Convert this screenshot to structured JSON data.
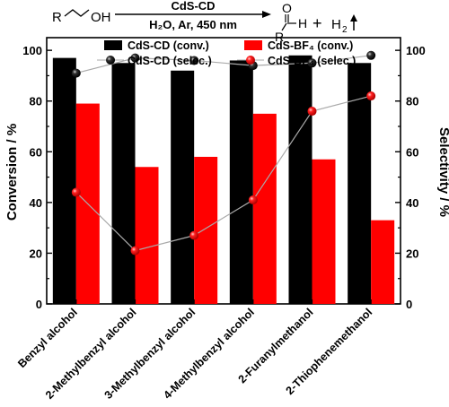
{
  "scheme": {
    "reactant_r": "R",
    "reactant_oh": "OH",
    "arrow_top": "CdS-CD",
    "arrow_bottom": "H₂O, Ar, 450 nm",
    "product_o": "O",
    "product_h": "H",
    "product_r": "R",
    "plus": "+",
    "h2_h": "H",
    "h2_sub": "2"
  },
  "chart_data": {
    "type": "bar",
    "categories": [
      "Benzyl alcohol",
      "2-Methylbenzyl alcohol",
      "3-Methylbenzyl alcohol",
      "4-Methylbenzyl alcohol",
      "2-Furanylmethanol",
      "2-Thiophenemethanol"
    ],
    "series": [
      {
        "name": "CdS-CD (conv.)",
        "kind": "bar",
        "axis": "left",
        "color": "#000000",
        "values": [
          97,
          95,
          92,
          96,
          98,
          95
        ]
      },
      {
        "name": "CdS-BF₄ (conv.)",
        "kind": "bar",
        "axis": "left",
        "color": "#ff0000",
        "values": [
          79,
          54,
          58,
          75,
          57,
          33
        ]
      },
      {
        "name": "CdS-CD (selec.)",
        "kind": "line",
        "axis": "right",
        "color": "#000000",
        "values": [
          91,
          97,
          96,
          94,
          95,
          98
        ]
      },
      {
        "name": "CdS-BF₄ (selec.)",
        "kind": "line",
        "axis": "right",
        "color": "#ff0000",
        "values": [
          44,
          21,
          27,
          41,
          76,
          82
        ]
      }
    ],
    "ylabel": "Conversion / %",
    "y2label": "Selectivity / %",
    "ylim": [
      0,
      105
    ],
    "y2lim": [
      0,
      105
    ],
    "yticks": [
      0,
      20,
      40,
      60,
      80,
      100
    ],
    "y2ticks": [
      0,
      20,
      40,
      60,
      80,
      100
    ],
    "grid": false,
    "legend_position": "top"
  }
}
